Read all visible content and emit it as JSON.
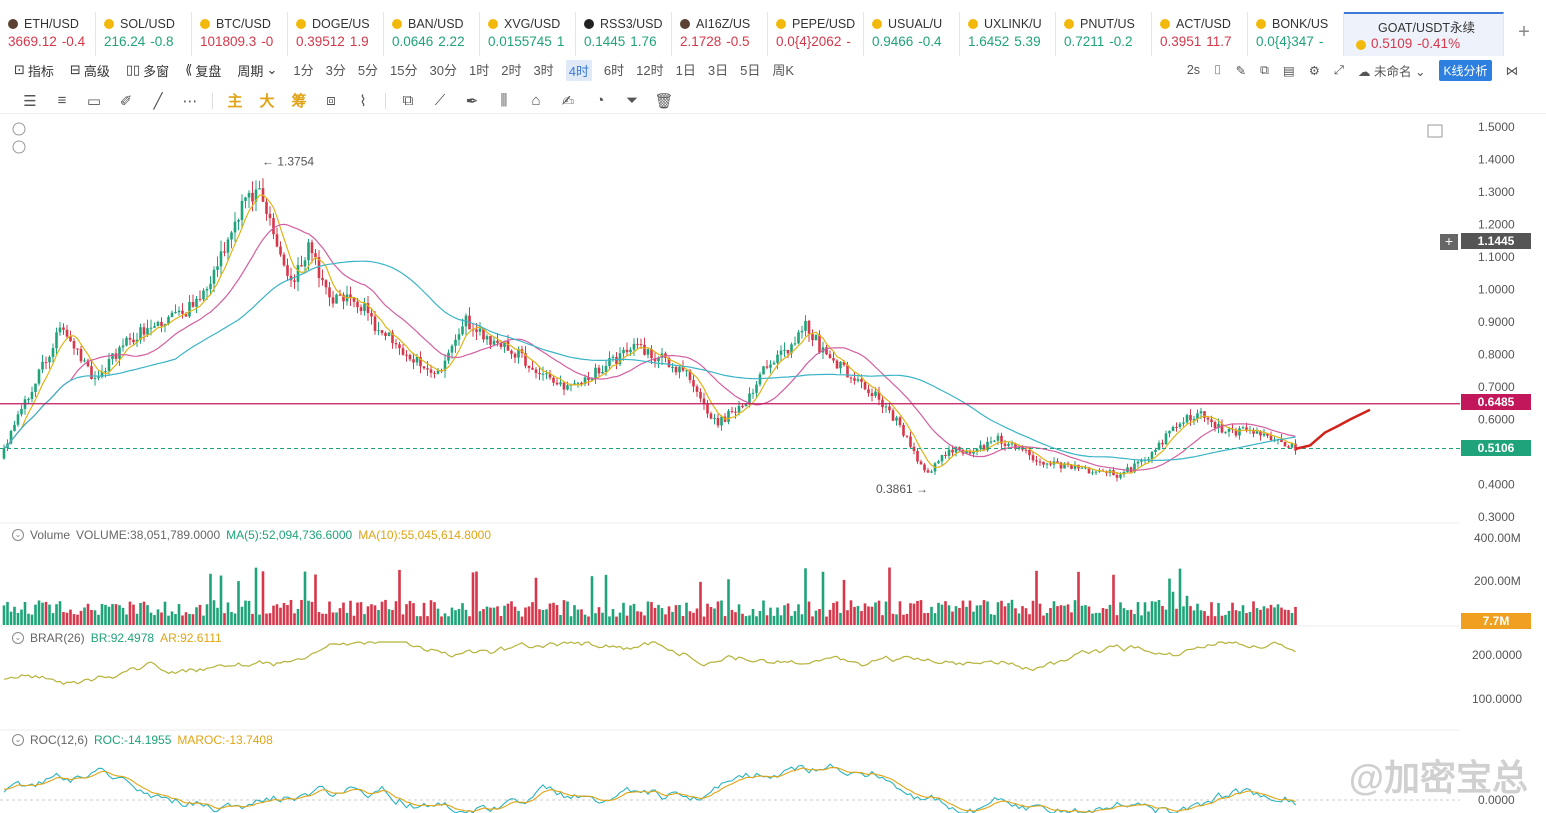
{
  "tickers": [
    {
      "name": "ETH/USD",
      "icon": "#5c4033",
      "price": "3669.12",
      "change": "-0.4",
      "dir": "down"
    },
    {
      "name": "SOL/USD",
      "icon": "#f0b90b",
      "price": "216.24",
      "change": "-0.8",
      "dir": "up"
    },
    {
      "name": "BTC/USD",
      "icon": "#f0b90b",
      "price": "101809.3",
      "change": "-0",
      "dir": "down"
    },
    {
      "name": "DOGE/US",
      "icon": "#f0b90b",
      "price": "0.39512",
      "change": "1.9",
      "dir": "down"
    },
    {
      "name": "BAN/USD",
      "icon": "#f0b90b",
      "price": "0.0646",
      "change": "2.22",
      "dir": "up"
    },
    {
      "name": "XVG/USD",
      "icon": "#f0b90b",
      "price": "0.0155745",
      "change": "1",
      "dir": "up"
    },
    {
      "name": "RSS3/USD",
      "icon": "#222222",
      "price": "0.1445",
      "change": "1.76",
      "dir": "up"
    },
    {
      "name": "AI16Z/US",
      "icon": "#5c4033",
      "price": "2.1728",
      "change": "-0.5",
      "dir": "down"
    },
    {
      "name": "PEPE/USD",
      "icon": "#f0b90b",
      "price": "0.0{4}2062",
      "change": "-",
      "dir": "down"
    },
    {
      "name": "USUAL/U",
      "icon": "#f0b90b",
      "price": "0.9466",
      "change": "-0.4",
      "dir": "up"
    },
    {
      "name": "UXLINK/U",
      "icon": "#f0b90b",
      "price": "1.6452",
      "change": "5.39",
      "dir": "up"
    },
    {
      "name": "PNUT/US",
      "icon": "#f0b90b",
      "price": "0.7211",
      "change": "-0.2",
      "dir": "up"
    },
    {
      "name": "ACT/USD",
      "icon": "#f0b90b",
      "price": "0.3951",
      "change": "11.7",
      "dir": "down"
    },
    {
      "name": "BONK/US",
      "icon": "#f0b90b",
      "price": "0.0{4}347",
      "change": "-",
      "dir": "up"
    }
  ],
  "active_ticker": {
    "name": "GOAT/USDT永续",
    "price": "0.5109",
    "change": "-0.41%",
    "icon": "#f0b90b"
  },
  "toolbar": {
    "indicator": "指标",
    "advanced": "高级",
    "multi": "多窗",
    "replay": "复盘",
    "cycle": "周期",
    "periods": [
      "1分",
      "3分",
      "5分",
      "15分",
      "30分",
      "1时",
      "2时",
      "3时",
      "4时",
      "6时",
      "12时",
      "1日",
      "3日",
      "5日",
      "周K"
    ],
    "active_period": "4时",
    "refresh": "2s",
    "unnamed": "未命名",
    "kline_analysis": "K线分析"
  },
  "drawtools": {
    "main": "主",
    "big": "大",
    "chip": "筹"
  },
  "chart": {
    "price_axis": [
      "1.5000",
      "1.4000",
      "1.3000",
      "1.2000",
      "1.1000",
      "1.0000",
      "0.9000",
      "0.8000",
      "0.7000",
      "0.6000",
      "0.5000",
      "0.4000",
      "0.3000"
    ],
    "high_label": "1.3754",
    "low_label": "0.3861",
    "crosshair_price": "1.1445",
    "resistance_price": "0.6485",
    "last_price": "0.5106",
    "volume_axis": [
      "400.00M",
      "200.00M"
    ],
    "volume_tag": "7.7M",
    "brar_axis": [
      "200.0000",
      "100.0000"
    ],
    "roc_axis": [
      "0.0000"
    ]
  },
  "indicators": {
    "volume": {
      "title": "Volume",
      "value": "VOLUME:38,051,789.0000",
      "ma5": "MA(5):52,094,736.6000",
      "ma10": "MA(10):55,045,614.8000"
    },
    "brar": {
      "title": "BRAR(26)",
      "br": "BR:92.4978",
      "ar": "AR:92.6111"
    },
    "roc": {
      "title": "ROC(12,6)",
      "roc": "ROC:-14.1955",
      "maroc": "MAROC:-13.7408"
    }
  },
  "colors": {
    "up": "#1fa37a",
    "down": "#d6374a",
    "ma5": "#e0b416",
    "ma10": "#d35fa0",
    "ma30": "#3bb4c8",
    "resistance": "#c2185b",
    "accent": "#2d7fe0"
  },
  "watermark": "@加密宝总"
}
